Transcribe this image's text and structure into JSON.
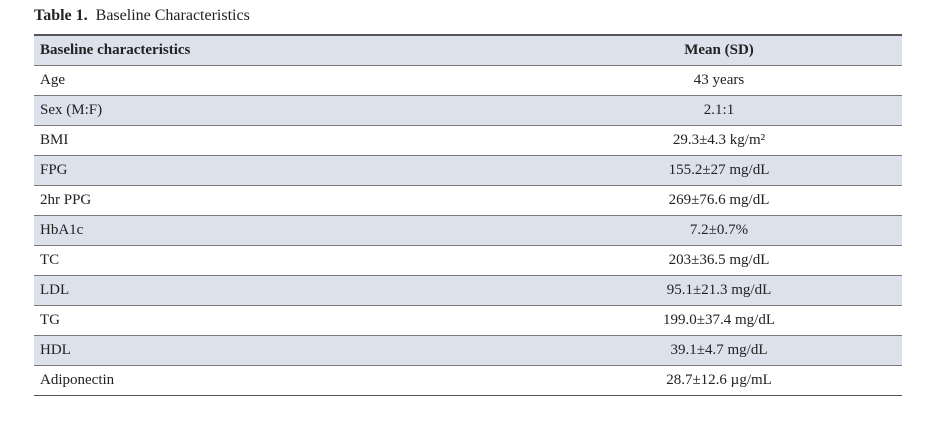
{
  "caption": {
    "label": "Table 1.",
    "title": "Baseline Characteristics"
  },
  "table": {
    "headers": [
      "Baseline characteristics",
      "Mean (SD)"
    ],
    "rows": [
      [
        "Age",
        "43 years"
      ],
      [
        "Sex (M:F)",
        "2.1:1"
      ],
      [
        "BMI",
        "29.3±4.3 kg/m²"
      ],
      [
        "FPG",
        "155.2±27 mg/dL"
      ],
      [
        "2hr PPG",
        "269±76.6 mg/dL"
      ],
      [
        "HbA1c",
        "7.2±0.7%"
      ],
      [
        "TC",
        "203±36.5 mg/dL"
      ],
      [
        "LDL",
        "95.1±21.3 mg/dL"
      ],
      [
        "TG",
        "199.0±37.4 mg/dL"
      ],
      [
        "HDL",
        "39.1±4.7 mg/dL"
      ],
      [
        "Adiponectin",
        "28.7±12.6 µg/mL"
      ]
    ]
  }
}
